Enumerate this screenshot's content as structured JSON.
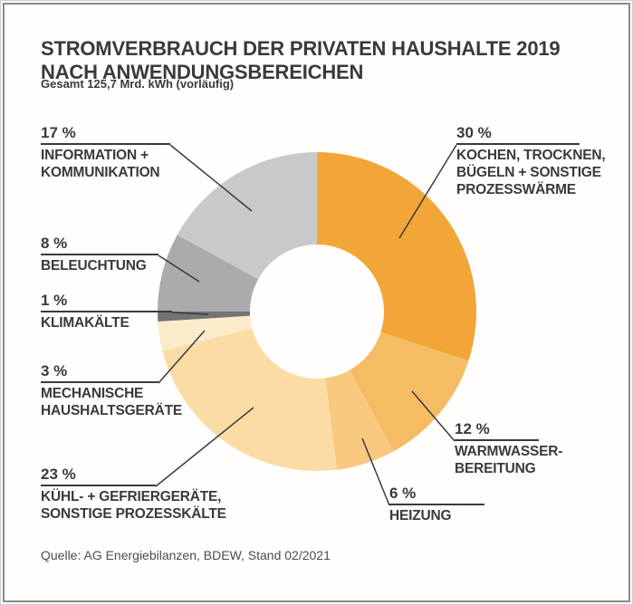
{
  "header": {
    "title": "STROMVERBRAUCH DER PRIVATEN HAUSHALTE 2019 NACH ANWENDUNGSBEREICHEN",
    "subtitle": "Gesamt 125,7 Mrd. kWh (vorläufig)"
  },
  "chart_data": {
    "type": "pie",
    "donut": true,
    "title": "Stromverbrauch der privaten Haushalte 2019 nach Anwendungsbereichen",
    "subtitle": "Gesamt 125,7 Mrd. kWh (vorläufig)",
    "unit": "%",
    "start_at": "12-o-clock, clockwise",
    "legend_position": "callout-labels",
    "segments": [
      {
        "id": "kochen",
        "label": "KOCHEN, TROCKNEN, BÜGELN + SONSTIGE PROZESSWÄRME",
        "value": 30,
        "pct_label": "30 %",
        "color": "#F2A637"
      },
      {
        "id": "warmwasser",
        "label": "WARMWASSER-BEREITUNG",
        "value": 12,
        "pct_label": "12 %",
        "color": "#F6BC63"
      },
      {
        "id": "heizung",
        "label": "HEIZUNG",
        "value": 6,
        "pct_label": "6 %",
        "color": "#F8C97E"
      },
      {
        "id": "kuehl",
        "label": "KÜHL- + GEFRIERGERÄTE, SONSTIGE PROZESSKÄLTE",
        "value": 23,
        "pct_label": "23 %",
        "color": "#FADCA4"
      },
      {
        "id": "mechanische",
        "label": "MECHANISCHE HAUSHALTSGERÄTE",
        "value": 3,
        "pct_label": "3 %",
        "color": "#FCEBCB"
      },
      {
        "id": "klimakaelte",
        "label": "KLIMAKÄLTE",
        "value": 1,
        "pct_label": "1 %",
        "color": "#747477"
      },
      {
        "id": "beleuchtung",
        "label": "BELEUCHTUNG",
        "value": 8,
        "pct_label": "8 %",
        "color": "#ABABAE"
      },
      {
        "id": "information",
        "label": "INFORMATION + KOMMUNIKATION",
        "value": 17,
        "pct_label": "17 %",
        "color": "#C9C9CC"
      }
    ]
  },
  "callouts": {
    "information": {
      "pct": "17 %",
      "line1": "INFORMATION +",
      "line2": "KOMMUNIKATION"
    },
    "beleuchtung": {
      "pct": "8 %",
      "line1": "BELEUCHTUNG"
    },
    "klimakaelte": {
      "pct": "1 %",
      "line1": "KLIMAKÄLTE"
    },
    "mechanische": {
      "pct": "3 %",
      "line1": "MECHANISCHE",
      "line2": "HAUSHALTSGERÄTE"
    },
    "kuehl": {
      "pct": "23 %",
      "line1": "KÜHL- + GEFRIERGERÄTE,",
      "line2": "SONSTIGE PROZESSKÄLTE"
    },
    "kochen": {
      "pct": "30 %",
      "line1": "KOCHEN, TROCKNEN,",
      "line2": "BÜGELN + SONSTIGE",
      "line3": "PROZESSWÄRME"
    },
    "warmwasser": {
      "pct": "12 %",
      "line1": "WARMWASSER-",
      "line2": "BEREITUNG"
    },
    "heizung": {
      "pct": "6 %",
      "line1": "HEIZUNG"
    }
  },
  "source": "Quelle: AG Energiebilanzen, BDEW, Stand 02/2021",
  "colors": {
    "text": "#3A3A3C",
    "frame": "#8A8A8E",
    "leader_line": "#3A3A3C"
  }
}
